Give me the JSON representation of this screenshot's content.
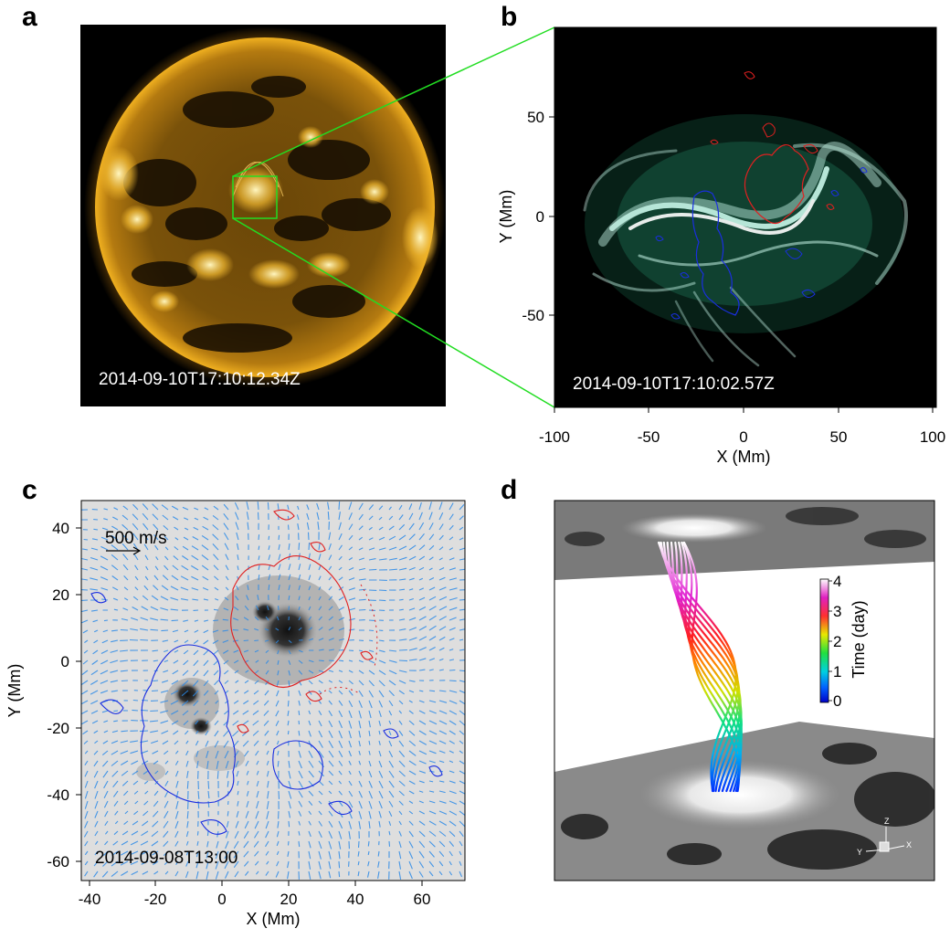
{
  "figure": {
    "panels": [
      {
        "letter": "a",
        "timestamp": "2014-09-10T17:10:12.34Z"
      },
      {
        "letter": "b",
        "timestamp": "2014-09-10T17:10:02.57Z",
        "xlabel": "X (Mm)",
        "ylabel": "Y (Mm)",
        "xticks": [
          "-100",
          "-50",
          "0",
          "50",
          "100"
        ],
        "yticks": [
          "50",
          "0",
          "-50"
        ]
      },
      {
        "letter": "c",
        "timestamp": "2014-09-08T13:00",
        "xlabel": "X (Mm)",
        "ylabel": "Y (Mm)",
        "xticks": [
          "-40",
          "-20",
          "0",
          "20",
          "40",
          "60"
        ],
        "yticks": [
          "40",
          "20",
          "0",
          "-20",
          "-40",
          "-60"
        ],
        "scale_label": "500 m/s"
      },
      {
        "letter": "d",
        "colorbar_label": "Time (day)",
        "colorbar_ticks": [
          "4",
          "3",
          "2",
          "1",
          "0"
        ],
        "axes_triad": [
          "Z",
          "Y",
          "X"
        ]
      }
    ]
  },
  "colors": {
    "sun": "#d89a10",
    "box": "#22dd22",
    "positive_contour": "#e02020",
    "negative_contour": "#1a2ee0",
    "flow_arrows": "#2a8ae8",
    "loops": "#bff5e6"
  }
}
